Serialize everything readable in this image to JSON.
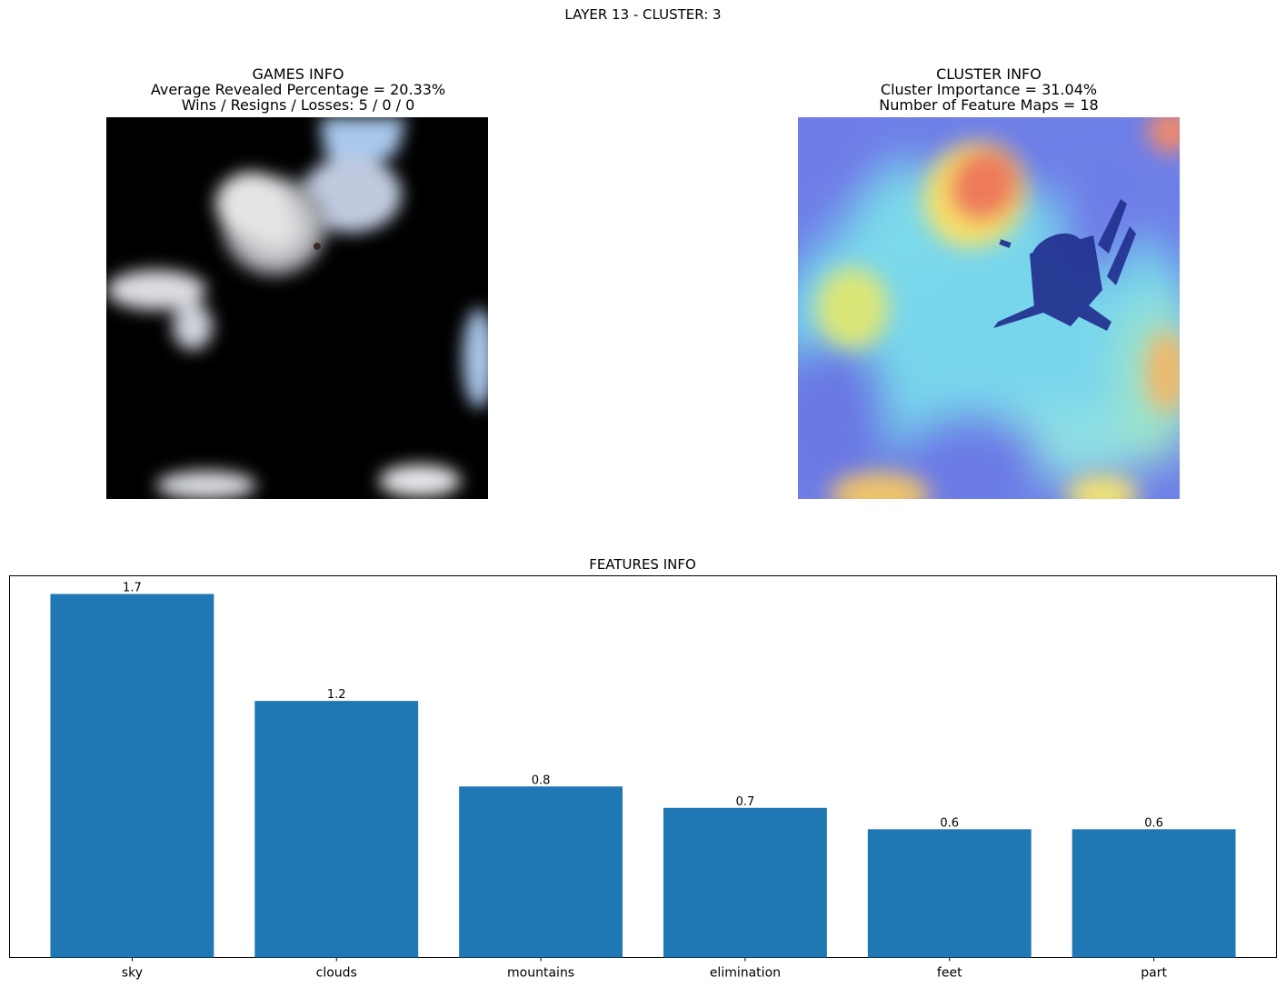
{
  "figure": {
    "suptitle": "LAYER 13 - CLUSTER: 3"
  },
  "games_info": {
    "title": "GAMES INFO",
    "line1": "Average Revealed Percentage = 20.33%",
    "line2": "Wins / Resigns / Losses: 5 / 0 / 0"
  },
  "cluster_info": {
    "title": "CLUSTER INFO",
    "line1": "Cluster Importance = 31.04%",
    "line2": "Number of Feature Maps = 18"
  },
  "chart_data": {
    "type": "bar",
    "title": "FEATURES INFO",
    "xlabel": "",
    "ylabel": "",
    "categories": [
      "sky",
      "clouds",
      "mountains",
      "elimination",
      "feet",
      "part"
    ],
    "values": [
      1.7,
      1.2,
      0.8,
      0.7,
      0.6,
      0.6
    ],
    "value_labels": [
      "1.7",
      "1.2",
      "0.8",
      "0.7",
      "0.6",
      "0.6"
    ],
    "ylim": [
      0,
      1.785
    ],
    "bar_color": "#1f77b4",
    "grid": false,
    "y_ticks_visible": false
  }
}
